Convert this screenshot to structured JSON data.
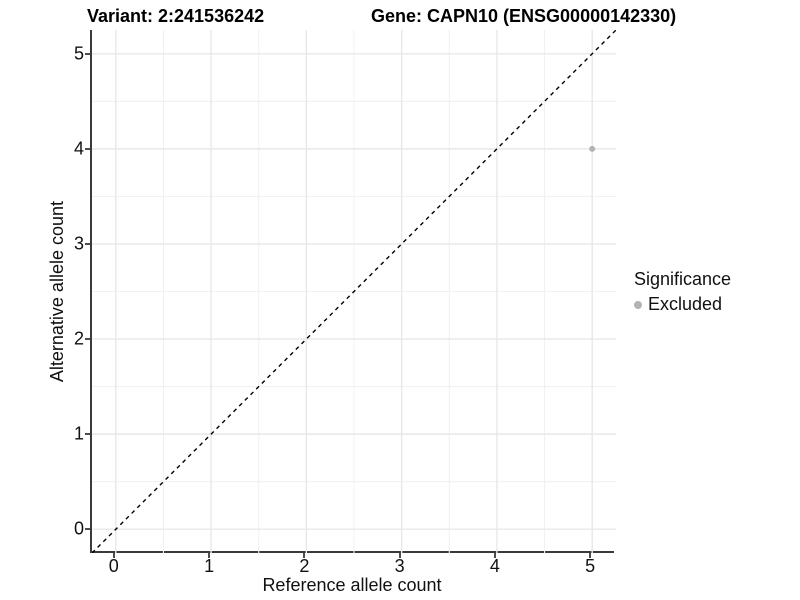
{
  "titles": {
    "left": "Variant: 2:241536242",
    "right": "Gene: CAPN10 (ENSG00000142330)"
  },
  "chart_data": {
    "type": "scatter",
    "title": "Variant: 2:241536242   Gene: CAPN10 (ENSG00000142330)",
    "xlabel": "Reference allele count",
    "ylabel": "Alternative allele count",
    "xlim": [
      -0.25,
      5.25
    ],
    "ylim": [
      -0.25,
      5.25
    ],
    "x_ticks": [
      0,
      1,
      2,
      3,
      4,
      5
    ],
    "y_ticks": [
      0,
      1,
      2,
      3,
      4,
      5
    ],
    "x_minor_ticks": [
      0.5,
      1.5,
      2.5,
      3.5,
      4.5
    ],
    "y_minor_ticks": [
      0.5,
      1.5,
      2.5,
      3.5,
      4.5
    ],
    "grid": true,
    "legend_position": "right",
    "series": [
      {
        "name": "Excluded",
        "marker": "circle",
        "color": "#b3b3b3",
        "points": [
          {
            "x": 5,
            "y": 4
          }
        ]
      }
    ],
    "reference_line": {
      "style": "dashed",
      "color": "#000000",
      "from": [
        -0.25,
        -0.25
      ],
      "to": [
        5.25,
        5.25
      ],
      "meaning": "y = x"
    },
    "legend": {
      "title": "Significance",
      "items": [
        {
          "label": "Excluded",
          "color": "#b3b3b3",
          "marker": "circle"
        }
      ]
    }
  },
  "colors": {
    "background": "#ffffff",
    "grid_major": "#e8e8e8",
    "grid_minor": "#f1f1f1",
    "axis_line": "#3a3a3a",
    "tick_mark": "#4d4d4d",
    "text": "#111111",
    "title_text": "#000000",
    "point": "#b3b3b3",
    "dashed_line": "#000000"
  }
}
